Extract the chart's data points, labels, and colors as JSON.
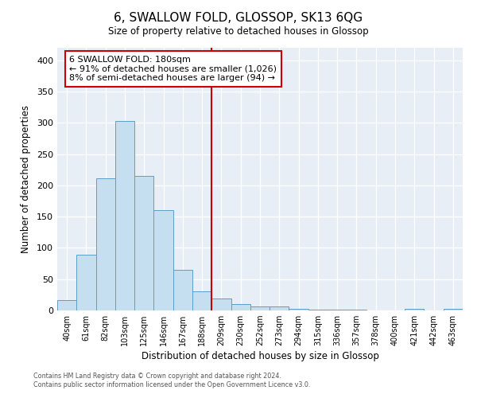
{
  "title": "6, SWALLOW FOLD, GLOSSOP, SK13 6QG",
  "subtitle": "Size of property relative to detached houses in Glossop",
  "xlabel": "Distribution of detached houses by size in Glossop",
  "ylabel": "Number of detached properties",
  "bin_labels": [
    "40sqm",
    "61sqm",
    "82sqm",
    "103sqm",
    "125sqm",
    "146sqm",
    "167sqm",
    "188sqm",
    "209sqm",
    "230sqm",
    "252sqm",
    "273sqm",
    "294sqm",
    "315sqm",
    "336sqm",
    "357sqm",
    "378sqm",
    "400sqm",
    "421sqm",
    "442sqm",
    "463sqm"
  ],
  "bar_heights": [
    17,
    89,
    211,
    303,
    215,
    160,
    65,
    30,
    19,
    10,
    7,
    6,
    2,
    1,
    1,
    1,
    0,
    0,
    3,
    0,
    2
  ],
  "bar_color": "#c5dff0",
  "bar_edge_color": "#5a9fc8",
  "vline_x": 7.5,
  "vline_color": "#cc0000",
  "ylim": [
    0,
    420
  ],
  "yticks": [
    0,
    50,
    100,
    150,
    200,
    250,
    300,
    350,
    400
  ],
  "annotation_title": "6 SWALLOW FOLD: 180sqm",
  "annotation_line1": "← 91% of detached houses are smaller (1,026)",
  "annotation_line2": "8% of semi-detached houses are larger (94) →",
  "footer1": "Contains HM Land Registry data © Crown copyright and database right 2024.",
  "footer2": "Contains public sector information licensed under the Open Government Licence v3.0.",
  "background_color": "#ffffff",
  "plot_bg_color": "#e8eef5"
}
